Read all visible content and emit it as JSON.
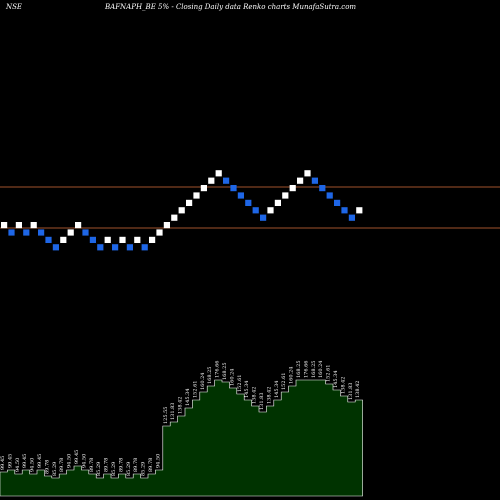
{
  "header": {
    "exchange": "NSE",
    "title": "BAFNAPH_BE 5% - Closing Daily data Renko charts MunafaSutra.com"
  },
  "colors": {
    "background": "#000000",
    "up_brick": "#ffffff",
    "down_brick": "#1e66e6",
    "reference_line": "#a0522d",
    "volume_fill": "#003300",
    "volume_stroke": "#ffffff"
  },
  "chart_data": {
    "type": "renko",
    "reference_lines": 2,
    "bricks": [
      {
        "dir": "up",
        "level": 0
      },
      {
        "dir": "down",
        "level": -1
      },
      {
        "dir": "up",
        "level": 0
      },
      {
        "dir": "down",
        "level": -1
      },
      {
        "dir": "up",
        "level": 0
      },
      {
        "dir": "down",
        "level": -1
      },
      {
        "dir": "down",
        "level": -2
      },
      {
        "dir": "down",
        "level": -3
      },
      {
        "dir": "up",
        "level": -2
      },
      {
        "dir": "up",
        "level": -1
      },
      {
        "dir": "up",
        "level": 0
      },
      {
        "dir": "down",
        "level": -1
      },
      {
        "dir": "down",
        "level": -2
      },
      {
        "dir": "down",
        "level": -3
      },
      {
        "dir": "up",
        "level": -2
      },
      {
        "dir": "down",
        "level": -3
      },
      {
        "dir": "up",
        "level": -2
      },
      {
        "dir": "down",
        "level": -3
      },
      {
        "dir": "up",
        "level": -2
      },
      {
        "dir": "down",
        "level": -3
      },
      {
        "dir": "up",
        "level": -2
      },
      {
        "dir": "up",
        "level": -1
      },
      {
        "dir": "up",
        "level": 0
      },
      {
        "dir": "up",
        "level": 1
      },
      {
        "dir": "up",
        "level": 2
      },
      {
        "dir": "up",
        "level": 3
      },
      {
        "dir": "up",
        "level": 4
      },
      {
        "dir": "up",
        "level": 5
      },
      {
        "dir": "up",
        "level": 6
      },
      {
        "dir": "up",
        "level": 7
      },
      {
        "dir": "down",
        "level": 6
      },
      {
        "dir": "down",
        "level": 5
      },
      {
        "dir": "down",
        "level": 4
      },
      {
        "dir": "down",
        "level": 3
      },
      {
        "dir": "down",
        "level": 2
      },
      {
        "dir": "down",
        "level": 1
      },
      {
        "dir": "up",
        "level": 2
      },
      {
        "dir": "up",
        "level": 3
      },
      {
        "dir": "up",
        "level": 4
      },
      {
        "dir": "up",
        "level": 5
      },
      {
        "dir": "up",
        "level": 6
      },
      {
        "dir": "up",
        "level": 7
      },
      {
        "dir": "down",
        "level": 6
      },
      {
        "dir": "down",
        "level": 5
      },
      {
        "dir": "down",
        "level": 4
      },
      {
        "dir": "down",
        "level": 3
      },
      {
        "dir": "down",
        "level": 2
      },
      {
        "dir": "down",
        "level": 1
      },
      {
        "dir": "up",
        "level": 2
      }
    ],
    "volume_profile": [
      0.12,
      0.13,
      0.11,
      0.13,
      0.11,
      0.13,
      0.1,
      0.09,
      0.11,
      0.13,
      0.15,
      0.13,
      0.11,
      0.09,
      0.11,
      0.09,
      0.11,
      0.09,
      0.11,
      0.09,
      0.11,
      0.13,
      0.35,
      0.37,
      0.4,
      0.44,
      0.48,
      0.52,
      0.55,
      0.58,
      0.57,
      0.54,
      0.51,
      0.48,
      0.45,
      0.42,
      0.45,
      0.48,
      0.52,
      0.55,
      0.58,
      0.58,
      0.58,
      0.58,
      0.56,
      0.53,
      0.5,
      0.47,
      0.48
    ],
    "volume_labels": [
      "99.45",
      "99.45",
      "94.50",
      "99.45",
      "94.50",
      "99.45",
      "89.78",
      "85.29",
      "89.78",
      "94.50",
      "99.45",
      "94.50",
      "89.78",
      "85.29",
      "89.78",
      "85.29",
      "89.78",
      "85.29",
      "89.78",
      "85.29",
      "89.78",
      "94.50",
      "125.55",
      "131.83",
      "138.42",
      "145.34",
      "152.61",
      "160.24",
      "168.25",
      "176.66",
      "168.25",
      "160.24",
      "152.61",
      "145.34",
      "138.42",
      "131.83",
      "138.42",
      "145.34",
      "152.61",
      "160.24",
      "168.25",
      "176.66",
      "168.25",
      "160.24",
      "152.61",
      "145.34",
      "138.42",
      "131.83",
      "138.42"
    ]
  }
}
